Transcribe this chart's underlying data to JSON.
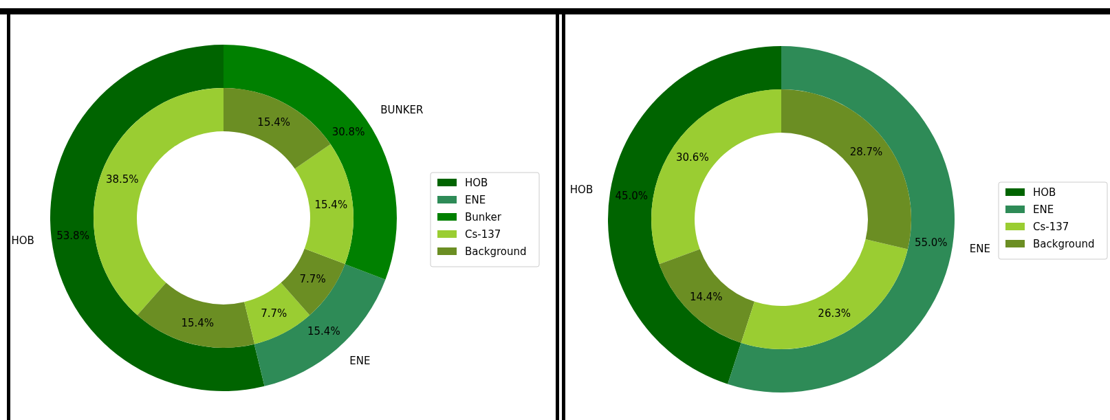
{
  "chart_data": [
    {
      "type": "donut",
      "categories": [
        "HOB",
        "ENE",
        "Bunker"
      ],
      "values": [
        53.8,
        15.4,
        30.8
      ],
      "colors": [
        "#006400",
        "#2e8b57",
        "#008000"
      ],
      "value_labels": [
        "53.8%",
        "15.4%",
        "30.8%"
      ],
      "annotations": [
        "HOB",
        "ENE",
        "BUNKER"
      ],
      "legend": "right"
    },
    {
      "type": "donut",
      "categories": [
        "Cs-137",
        "Background",
        null,
        null,
        null,
        null
      ],
      "values": [
        38.5,
        15.4,
        7.7,
        7.7,
        15.4,
        15.4
      ],
      "colors": [
        "#9acd32",
        "#6b8e23",
        "#9acd32",
        "#6b8e23",
        "#9acd32",
        "#6b8e23"
      ],
      "value_labels": [
        "38.5%",
        "15.4%",
        "7.7%",
        "7.7%",
        "15.4%",
        "15.4%"
      ],
      "legend": "right"
    },
    {
      "type": "donut",
      "categories": [
        "HOB",
        "ENE"
      ],
      "values": [
        45.0,
        55.0
      ],
      "colors": [
        "#006400",
        "#2e8b57"
      ],
      "value_labels": [
        "45.0%",
        "55.0%"
      ],
      "annotations": [
        "HOB",
        "ENE"
      ],
      "legend": "right"
    },
    {
      "type": "donut",
      "categories": [
        "Cs-137",
        "Background",
        null,
        null
      ],
      "values": [
        30.6,
        14.4,
        26.3,
        28.7
      ],
      "colors": [
        "#9acd32",
        "#6b8e23",
        "#9acd32",
        "#6b8e23"
      ],
      "value_labels": [
        "30.6%",
        "14.4%",
        "26.3%",
        "28.7%"
      ],
      "legend": "right"
    }
  ]
}
